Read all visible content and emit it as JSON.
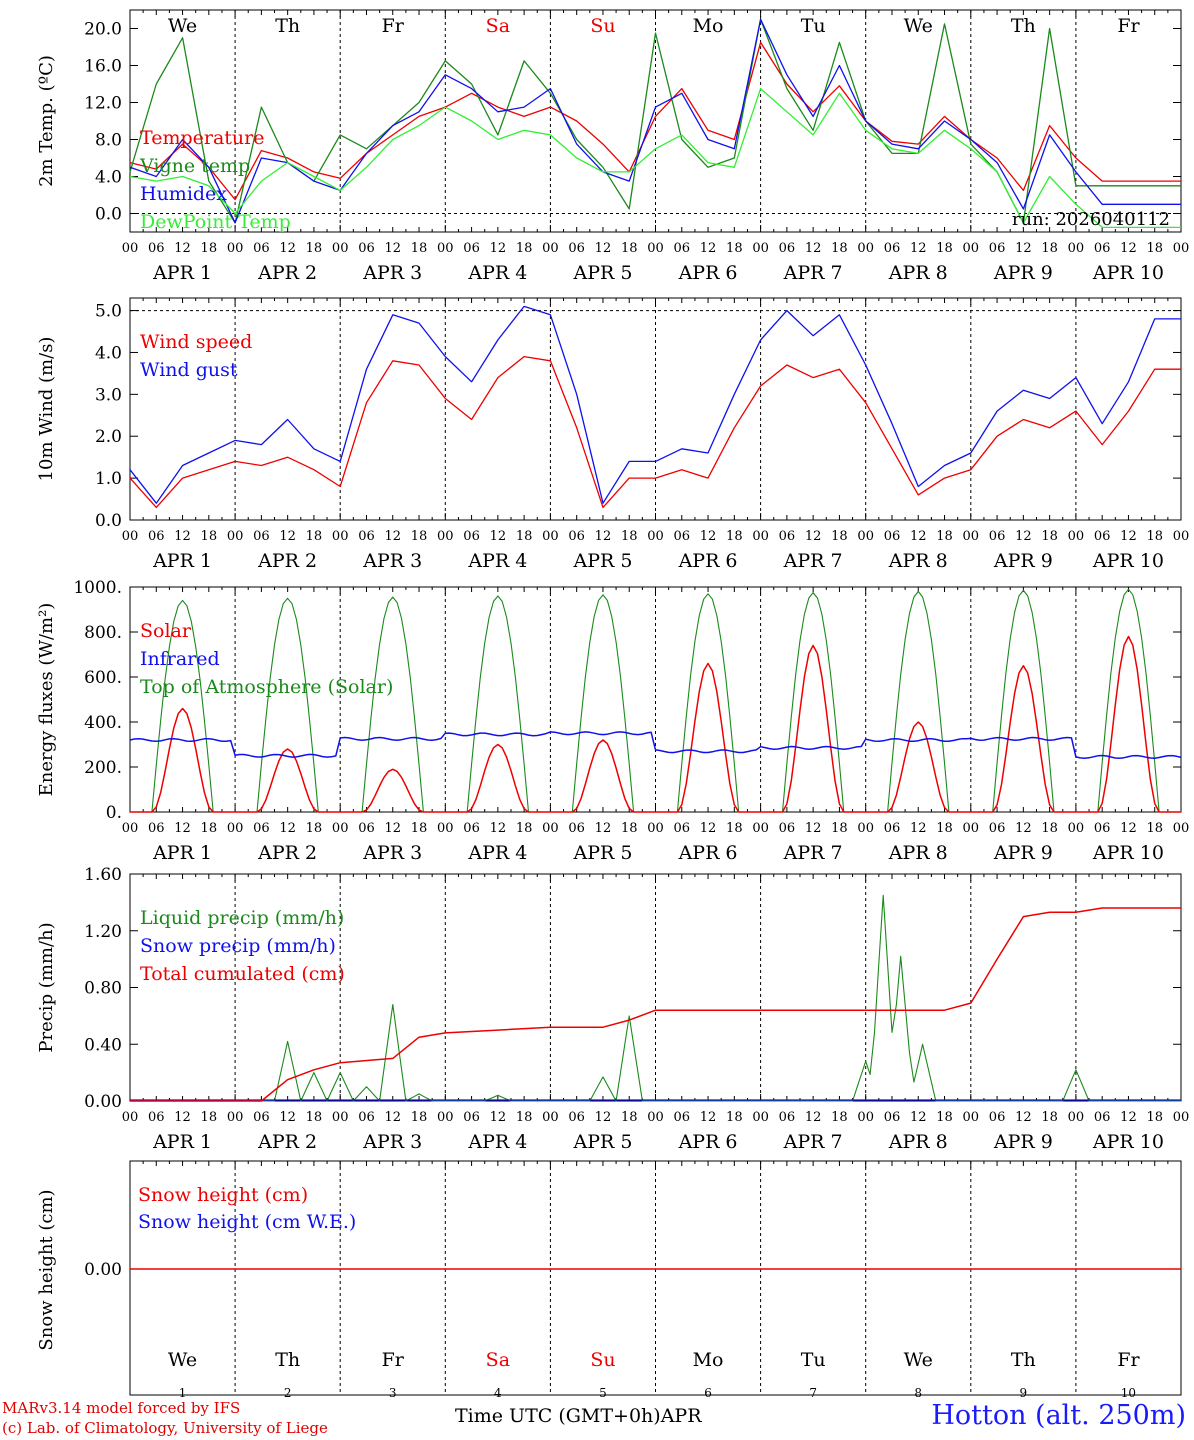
{
  "run_label": "run: 2026040112",
  "credits": [
    "MARv3.14 model forced by IFS",
    "(c) Lab. of Climatology, University of Liege"
  ],
  "location": "Hotton (alt. 250m)",
  "time_axis_label": "Time UTC (GMT+0h)",
  "month_label": "APR",
  "colors": {
    "red": "#ee0000",
    "blue": "#1010ee",
    "green": "#1b8a1b",
    "lightgreen": "#33ee33"
  },
  "days": [
    {
      "weekday": "We",
      "date": "APR  1",
      "num": "1",
      "weekend": false
    },
    {
      "weekday": "Th",
      "date": "APR  2",
      "num": "2",
      "weekend": false
    },
    {
      "weekday": "Fr",
      "date": "APR  3",
      "num": "3",
      "weekend": false
    },
    {
      "weekday": "Sa",
      "date": "APR  4",
      "num": "4",
      "weekend": true
    },
    {
      "weekday": "Su",
      "date": "APR  5",
      "num": "5",
      "weekend": true
    },
    {
      "weekday": "Mo",
      "date": "APR  6",
      "num": "6",
      "weekend": false
    },
    {
      "weekday": "Tu",
      "date": "APR  7",
      "num": "7",
      "weekend": false
    },
    {
      "weekday": "We",
      "date": "APR  8",
      "num": "8",
      "weekend": false
    },
    {
      "weekday": "Th",
      "date": "APR  9",
      "num": "9",
      "weekend": false
    },
    {
      "weekday": "Fr",
      "date": "APR 10",
      "num": "10",
      "weekend": false
    }
  ],
  "hour_ticks": [
    "00",
    "06",
    "12",
    "18"
  ],
  "chart_data": [
    {
      "type": "line",
      "id": "temp",
      "ylabel": "2m Temp. (ºC)",
      "ylim": [
        -2,
        22
      ],
      "yticks": [
        0,
        4,
        8,
        12,
        16,
        20
      ],
      "ytick_labels": [
        "0.0",
        "4.0",
        "8.0",
        "12.0",
        "16.0",
        "20.0"
      ],
      "dashed_y": [
        0
      ],
      "x_hours": [
        0,
        6,
        12,
        18,
        24,
        30,
        36,
        42,
        48,
        54,
        60,
        66,
        72,
        78,
        84,
        90,
        96,
        102,
        108,
        114,
        120,
        126,
        132,
        138,
        144,
        150,
        156,
        162,
        168,
        174,
        180,
        186,
        192,
        198,
        204,
        210,
        216,
        222,
        228,
        234,
        240
      ],
      "series": [
        {
          "name": "Temperature",
          "color": "red",
          "values": [
            5.5,
            4.8,
            7.5,
            5.0,
            1.5,
            6.8,
            6.0,
            4.5,
            3.8,
            6.5,
            8.5,
            10.5,
            11.5,
            13.0,
            11.5,
            10.5,
            11.5,
            10.0,
            7.5,
            4.5,
            10.5,
            13.5,
            9.0,
            8.0,
            18.5,
            14.0,
            11.0,
            13.8,
            10.0,
            7.8,
            7.5,
            10.5,
            8.0,
            6.0,
            2.5,
            9.5,
            6.0,
            3.5,
            3.5,
            3.5,
            3.5
          ]
        },
        {
          "name": "Vigne temp",
          "color": "green",
          "values": [
            4.5,
            14.0,
            19.0,
            3.5,
            -1.0,
            11.5,
            5.5,
            3.5,
            8.5,
            7.0,
            9.5,
            12.0,
            16.5,
            14.0,
            8.5,
            16.5,
            13.0,
            8.0,
            5.0,
            0.5,
            19.5,
            8.0,
            5.0,
            6.0,
            21.0,
            13.5,
            9.0,
            18.5,
            10.0,
            6.5,
            6.5,
            20.5,
            7.5,
            4.5,
            -1.0,
            20.0,
            3.0,
            3.0,
            3.0,
            3.0,
            3.0
          ]
        },
        {
          "name": "Humidex",
          "color": "blue",
          "values": [
            5.0,
            4.0,
            8.0,
            5.0,
            -1.0,
            6.0,
            5.5,
            3.5,
            2.5,
            6.5,
            9.5,
            11.0,
            15.0,
            13.5,
            11.0,
            11.5,
            13.5,
            7.5,
            4.5,
            3.5,
            11.5,
            13.0,
            8.0,
            7.0,
            21.0,
            15.0,
            10.5,
            16.0,
            10.0,
            7.5,
            7.0,
            10.0,
            8.0,
            5.5,
            0.5,
            8.5,
            4.5,
            1.0,
            1.0,
            1.0,
            1.0
          ]
        },
        {
          "name": "DewPoint Temp",
          "color": "lightgreen",
          "values": [
            4.0,
            3.5,
            4.0,
            3.0,
            0.0,
            3.5,
            5.5,
            4.0,
            2.5,
            5.0,
            8.0,
            9.5,
            11.5,
            10.0,
            8.0,
            9.0,
            8.5,
            6.0,
            4.5,
            4.5,
            7.0,
            8.5,
            5.5,
            5.0,
            13.5,
            11.0,
            8.5,
            13.0,
            9.0,
            7.0,
            6.5,
            9.0,
            7.0,
            4.5,
            -1.0,
            4.0,
            1.0,
            -1.5,
            -1.5,
            -1.5,
            -1.5
          ]
        }
      ]
    },
    {
      "type": "line",
      "id": "wind",
      "ylabel": "10m Wind (m/s)",
      "ylim": [
        0,
        5.3
      ],
      "yticks": [
        0,
        1,
        2,
        3,
        4,
        5
      ],
      "ytick_labels": [
        "0.0",
        "1.0",
        "2.0",
        "3.0",
        "4.0",
        "5.0"
      ],
      "dashed_y": [
        5
      ],
      "x_hours": [
        0,
        6,
        12,
        18,
        24,
        30,
        36,
        42,
        48,
        54,
        60,
        66,
        72,
        78,
        84,
        90,
        96,
        102,
        108,
        114,
        120,
        126,
        132,
        138,
        144,
        150,
        156,
        162,
        168,
        174,
        180,
        186,
        192,
        198,
        204,
        210,
        216,
        222,
        228,
        234,
        240
      ],
      "series": [
        {
          "name": "Wind speed",
          "color": "red",
          "values": [
            1.0,
            0.3,
            1.0,
            1.2,
            1.4,
            1.3,
            1.5,
            1.2,
            0.8,
            2.8,
            3.8,
            3.7,
            2.9,
            2.4,
            3.4,
            3.9,
            3.8,
            2.2,
            0.3,
            1.0,
            1.0,
            1.2,
            1.0,
            2.2,
            3.2,
            3.7,
            3.4,
            3.6,
            2.8,
            1.7,
            0.6,
            1.0,
            1.2,
            2.0,
            2.4,
            2.2,
            2.6,
            1.8,
            2.6,
            3.6,
            3.6
          ]
        },
        {
          "name": "Wind gust",
          "color": "blue",
          "values": [
            1.2,
            0.4,
            1.3,
            1.6,
            1.9,
            1.8,
            2.4,
            1.7,
            1.4,
            3.6,
            4.9,
            4.7,
            3.9,
            3.3,
            4.3,
            5.1,
            4.9,
            3.0,
            0.4,
            1.4,
            1.4,
            1.7,
            1.6,
            3.0,
            4.3,
            5.0,
            4.4,
            4.9,
            3.7,
            2.3,
            0.8,
            1.3,
            1.6,
            2.6,
            3.1,
            2.9,
            3.4,
            2.3,
            3.3,
            4.8,
            4.8
          ]
        }
      ]
    },
    {
      "type": "line",
      "id": "energy",
      "ylabel": "Energy fluxes (W/m²)",
      "ylim": [
        0,
        1000
      ],
      "yticks": [
        0,
        200,
        400,
        600,
        800,
        1000
      ],
      "ytick_labels": [
        "0.",
        "200.",
        "400.",
        "600.",
        "800.",
        "1000."
      ],
      "dashed_y": [],
      "daily_peaks": {
        "top_of_atmosphere": [
          940,
          950,
          955,
          960,
          965,
          970,
          975,
          980,
          985,
          990
        ],
        "solar": [
          460,
          280,
          190,
          300,
          320,
          660,
          740,
          400,
          650,
          780
        ]
      },
      "infrared_daily": [
        320,
        250,
        325,
        345,
        350,
        270,
        285,
        320,
        325,
        245
      ],
      "series": [
        {
          "name": "Solar",
          "color": "red"
        },
        {
          "name": "Infrared",
          "color": "blue"
        },
        {
          "name": "Top of Atmosphere (Solar)",
          "color": "green"
        }
      ]
    },
    {
      "type": "line",
      "id": "precip",
      "ylabel": "Precip (mm/h)",
      "ylim": [
        0,
        1.6
      ],
      "yticks": [
        0,
        0.4,
        0.8,
        1.2,
        1.6
      ],
      "ytick_labels": [
        "0.00",
        "0.40",
        "0.80",
        "1.20",
        "1.60"
      ],
      "dashed_y": [],
      "cumulated_x_hours": [
        0,
        30,
        36,
        42,
        48,
        60,
        66,
        72,
        84,
        96,
        108,
        114,
        120,
        150,
        180,
        186,
        192,
        198,
        204,
        210,
        216,
        222,
        228,
        234,
        240
      ],
      "cumulated_values": [
        0.0,
        0.0,
        0.15,
        0.22,
        0.27,
        0.3,
        0.45,
        0.48,
        0.5,
        0.52,
        0.52,
        0.57,
        0.64,
        0.64,
        0.64,
        0.64,
        0.69,
        1.0,
        1.3,
        1.33,
        1.33,
        1.36,
        1.36,
        1.36,
        1.36
      ],
      "liquid_events": [
        [
          36,
          0.42
        ],
        [
          42,
          0.2
        ],
        [
          48,
          0.2
        ],
        [
          54,
          0.1
        ],
        [
          60,
          0.68
        ],
        [
          66,
          0.05
        ],
        [
          84,
          0.04
        ],
        [
          108,
          0.17
        ],
        [
          114,
          0.6
        ],
        [
          168,
          0.28
        ],
        [
          172,
          1.45
        ],
        [
          176,
          1.02
        ],
        [
          181,
          0.4
        ],
        [
          216,
          0.22
        ]
      ],
      "series": [
        {
          "name": "Liquid precip (mm/h)",
          "color": "green"
        },
        {
          "name": "Snow precip (mm/h)",
          "color": "blue"
        },
        {
          "name": "Total cumulated (cm)",
          "color": "red"
        }
      ]
    },
    {
      "type": "line",
      "id": "snow",
      "ylabel": "Snow height (cm)",
      "ylim": [
        -1,
        1
      ],
      "yticks": [
        0
      ],
      "ytick_labels": [
        "0.00"
      ],
      "dashed_y": [],
      "series": [
        {
          "name": "Snow height (cm)",
          "color": "red",
          "value": 0
        },
        {
          "name": "Snow height (cm W.E.)",
          "color": "blue",
          "value": 0
        }
      ]
    }
  ]
}
